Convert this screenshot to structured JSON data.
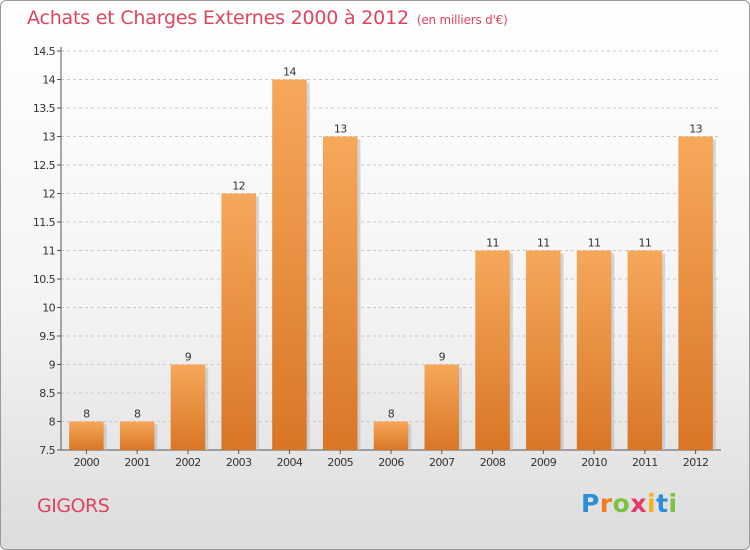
{
  "page": {
    "title": "Achats et Charges Externes 2000 à 2012",
    "subtitle": "(en milliers d'€)",
    "city": "GIGORS",
    "logo": {
      "letters": [
        "P",
        "r",
        "o",
        "x",
        "i",
        "t",
        "i"
      ],
      "colors": [
        "#2b8fd6",
        "#f07c1f",
        "#7cc242",
        "#e63a6b",
        "#f5b11f",
        "#2b8fd6",
        "#7cc242"
      ]
    }
  },
  "colors": {
    "accent": "#e0445d",
    "bar_top": "#f6a85a",
    "bar_bottom": "#d97626",
    "axis": "#555555",
    "grid": "#c8c8c8"
  },
  "chart_data": {
    "type": "bar",
    "title": "Achats et Charges Externes 2000 à 2012",
    "subtitle": "(en milliers d'€)",
    "xlabel": "",
    "ylabel": "",
    "ylim": [
      7.5,
      14.5
    ],
    "yticks": [
      7.5,
      8,
      8.5,
      9,
      9.5,
      10,
      10.5,
      11,
      11.5,
      12,
      12.5,
      13,
      13.5,
      14,
      14.5
    ],
    "ytick_labels": [
      "7.5",
      "8",
      "8.5",
      "9",
      "9.5",
      "10",
      "10.5",
      "11",
      "11.5",
      "12",
      "12.5",
      "13",
      "13.5",
      "14",
      "14.5"
    ],
    "categories": [
      "2000",
      "2001",
      "2002",
      "2003",
      "2004",
      "2005",
      "2006",
      "2007",
      "2008",
      "2009",
      "2010",
      "2011",
      "2012"
    ],
    "values": [
      8,
      8,
      9,
      12,
      14,
      13,
      8,
      9,
      11,
      11,
      11,
      11,
      13
    ],
    "grid": "horizontal-dashed",
    "legend": "none"
  }
}
